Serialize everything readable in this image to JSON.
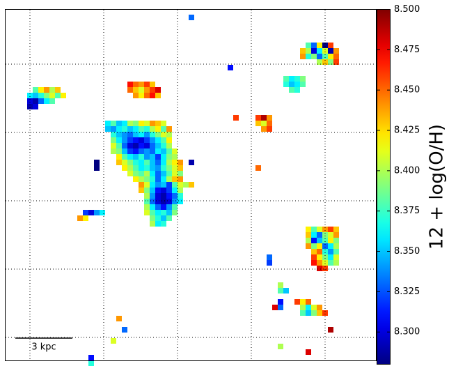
{
  "chart_data": {
    "type": "heatmap",
    "colormap": "jet",
    "colorbar_label": "12 + log(O/H)",
    "scale_bar": "3 kpc",
    "clim": [
      8.28,
      8.5
    ],
    "cticks": [
      {
        "value": 8.3,
        "label": "8.300"
      },
      {
        "value": 8.325,
        "label": "8.325"
      },
      {
        "value": 8.35,
        "label": "8.350"
      },
      {
        "value": 8.375,
        "label": "8.375"
      },
      {
        "value": 8.4,
        "label": "8.400"
      },
      {
        "value": 8.425,
        "label": "8.425"
      },
      {
        "value": 8.45,
        "label": "8.450"
      },
      {
        "value": 8.475,
        "label": "8.475"
      },
      {
        "value": 8.5,
        "label": "8.500"
      }
    ],
    "cells": [
      {
        "row": 20,
        "col": 18,
        "values": [
          8.36,
          8.38,
          8.35,
          8.36,
          8.4,
          8.39,
          8.42,
          8.41,
          8.44,
          8.43,
          8.41
        ]
      },
      {
        "row": 21,
        "col": 18,
        "values": [
          8.35,
          8.34,
          8.36,
          8.37,
          8.35,
          8.36,
          8.38,
          8.37,
          8.4,
          8.42,
          8.38,
          8.44
        ]
      },
      {
        "row": 22,
        "col": 19,
        "values": [
          8.37,
          8.35,
          8.34,
          8.33,
          8.35,
          8.36,
          8.34,
          8.37,
          8.39,
          8.41,
          8.4
        ]
      },
      {
        "row": 23,
        "col": 19,
        "values": [
          8.39,
          8.36,
          8.34,
          8.32,
          8.31,
          8.3,
          8.32,
          8.34,
          8.36,
          8.38,
          8.42
        ]
      },
      {
        "row": 24,
        "col": 19,
        "values": [
          8.41,
          8.38,
          8.33,
          8.3,
          8.29,
          8.31,
          8.3,
          8.33,
          8.35,
          8.37,
          8.4
        ]
      },
      {
        "row": 25,
        "col": 19,
        "values": [
          8.4,
          8.39,
          8.35,
          8.32,
          8.31,
          8.33,
          8.34,
          8.33,
          8.36,
          8.35,
          8.38,
          8.41
        ]
      },
      {
        "row": 26,
        "col": 20,
        "values": [
          8.42,
          8.38,
          8.36,
          8.35,
          8.37,
          8.34,
          8.35,
          8.32,
          8.36,
          8.39,
          8.4
        ]
      },
      {
        "row": 27,
        "col": 20,
        "values": [
          8.43,
          8.41,
          8.39,
          8.37,
          8.36,
          8.38,
          8.35,
          8.33,
          8.36,
          8.4,
          8.42,
          8.44
        ]
      },
      {
        "row": 28,
        "col": 21,
        "values": [
          8.42,
          8.4,
          8.38,
          8.36,
          8.37,
          8.35,
          8.34,
          8.37,
          8.39,
          8.41,
          8.43
        ]
      },
      {
        "row": 29,
        "col": 22,
        "values": [
          8.41,
          8.39,
          8.38,
          8.4,
          8.36,
          8.33,
          8.35,
          8.38,
          8.41,
          8.39
        ]
      },
      {
        "row": 30,
        "col": 23,
        "values": [
          8.42,
          8.4,
          8.39,
          8.37,
          8.33,
          8.36,
          8.4,
          8.43,
          8.44
        ]
      },
      {
        "row": 31,
        "col": 24,
        "values": [
          8.44,
          8.41,
          8.36,
          8.34,
          8.35,
          8.32,
          8.38,
          8.41,
          8.4
        ]
      },
      {
        "row": 32,
        "col": 24,
        "values": [
          8.43,
          8.39,
          8.35,
          8.31,
          8.3,
          8.32,
          8.36,
          8.4
        ]
      },
      {
        "row": 33,
        "col": 25,
        "values": [
          8.4,
          8.34,
          8.3,
          8.29,
          8.31,
          8.33,
          8.37
        ]
      },
      {
        "row": 34,
        "col": 25,
        "values": [
          8.38,
          8.33,
          8.3,
          8.29,
          8.3,
          8.34,
          8.36
        ]
      },
      {
        "row": 35,
        "col": 25,
        "values": [
          8.4,
          8.36,
          8.33,
          8.31,
          8.34,
          8.38
        ]
      },
      {
        "row": 36,
        "col": 25,
        "values": [
          8.41,
          8.38,
          8.36,
          8.37,
          8.35,
          8.39
        ]
      },
      {
        "row": 37,
        "col": 26,
        "values": [
          8.39,
          8.37,
          8.35,
          8.38
        ]
      },
      {
        "row": 38,
        "col": 26,
        "values": [
          8.4,
          8.36,
          8.37
        ]
      },
      {
        "row": 14,
        "col": 5,
        "values": [
          8.38,
          8.42,
          8.44,
          8.4,
          8.43
        ]
      },
      {
        "row": 15,
        "col": 4,
        "values": [
          8.36,
          8.35,
          8.37,
          8.39,
          8.41,
          8.38,
          8.42
        ]
      },
      {
        "row": 16,
        "col": 4,
        "values": [
          8.3,
          8.29,
          8.33,
          8.36,
          8.38
        ]
      },
      {
        "row": 17,
        "col": 4,
        "values": [
          8.29,
          8.3
        ]
      },
      {
        "row": 13,
        "col": 22,
        "values": [
          8.47,
          8.45,
          8.44,
          8.46,
          8.43
        ]
      },
      {
        "row": 14,
        "col": 22,
        "values": [
          8.45,
          8.43,
          8.41,
          8.44,
          8.46,
          8.48
        ]
      },
      {
        "row": 15,
        "col": 23,
        "values": [
          8.44,
          8.42,
          8.45,
          8.47,
          8.43
        ]
      },
      {
        "row": 6,
        "col": 54,
        "values": [
          8.38,
          8.33,
          8.42,
          8.28,
          8.46
        ]
      },
      {
        "row": 7,
        "col": 53,
        "values": [
          8.43,
          8.4,
          8.3,
          8.36,
          8.41,
          8.29,
          8.44
        ]
      },
      {
        "row": 8,
        "col": 53,
        "values": [
          8.44,
          8.37,
          8.39,
          8.33,
          8.38,
          8.42,
          8.45
        ]
      },
      {
        "row": 9,
        "col": 56,
        "values": [
          8.4,
          8.43,
          8.39,
          8.46
        ]
      },
      {
        "row": 12,
        "col": 50,
        "values": [
          8.38,
          8.36,
          8.37,
          8.39
        ]
      },
      {
        "row": 13,
        "col": 50,
        "values": [
          8.37,
          8.35,
          8.36,
          8.38
        ]
      },
      {
        "row": 14,
        "col": 51,
        "values": [
          8.38,
          8.37
        ]
      },
      {
        "row": 19,
        "col": 45,
        "values": [
          8.46,
          8.49,
          8.44
        ]
      },
      {
        "row": 20,
        "col": 45,
        "values": [
          8.43,
          8.41,
          8.45
        ]
      },
      {
        "row": 21,
        "col": 46,
        "values": [
          8.44,
          8.46
        ]
      },
      {
        "row": 39,
        "col": 54,
        "values": [
          8.42,
          8.38,
          8.41,
          8.44,
          8.46,
          8.43
        ]
      },
      {
        "row": 40,
        "col": 54,
        "values": [
          8.43,
          8.36,
          8.33,
          8.39,
          8.41,
          8.44
        ]
      },
      {
        "row": 41,
        "col": 54,
        "values": [
          8.4,
          8.31,
          8.35,
          8.38,
          8.42,
          8.39
        ]
      },
      {
        "row": 42,
        "col": 54,
        "values": [
          8.44,
          8.39,
          8.42,
          8.33,
          8.36,
          8.4
        ]
      },
      {
        "row": 43,
        "col": 55,
        "values": [
          8.43,
          8.45,
          8.37,
          8.34,
          8.38
        ]
      },
      {
        "row": 44,
        "col": 55,
        "values": [
          8.46,
          8.42,
          8.39,
          8.36,
          8.41
        ]
      },
      {
        "row": 45,
        "col": 55,
        "values": [
          8.47,
          8.44,
          8.41,
          8.38,
          8.4
        ]
      },
      {
        "row": 46,
        "col": 56,
        "values": [
          8.48,
          8.46
        ]
      },
      {
        "row": 52,
        "col": 52,
        "values": [
          8.46,
          8.42,
          8.45
        ]
      },
      {
        "row": 53,
        "col": 53,
        "values": [
          8.4,
          8.36,
          8.41,
          8.44
        ]
      },
      {
        "row": 54,
        "col": 53,
        "values": [
          8.38,
          8.35,
          8.39,
          8.43,
          8.46
        ]
      },
      {
        "row": 57,
        "col": 58,
        "values": [
          8.49
        ]
      },
      {
        "row": 49,
        "col": 49,
        "values": [
          8.4
        ]
      },
      {
        "row": 50,
        "col": 49,
        "values": [
          8.38,
          8.35
        ]
      },
      {
        "row": 52,
        "col": 49,
        "values": [
          8.31
        ]
      },
      {
        "row": 53,
        "col": 48,
        "values": [
          8.48,
          8.33
        ]
      },
      {
        "row": 44,
        "col": 47,
        "values": [
          8.33
        ]
      },
      {
        "row": 45,
        "col": 47,
        "values": [
          8.32
        ]
      },
      {
        "row": 36,
        "col": 14,
        "values": [
          8.32,
          8.3,
          8.34,
          8.36
        ]
      },
      {
        "row": 37,
        "col": 13,
        "values": [
          8.44,
          8.42
        ]
      },
      {
        "row": 1,
        "col": 33,
        "values": [
          8.33
        ]
      },
      {
        "row": 10,
        "col": 40,
        "values": [
          8.31
        ]
      },
      {
        "row": 19,
        "col": 41,
        "values": [
          8.46
        ]
      },
      {
        "row": 27,
        "col": 16,
        "values": [
          8.28
        ]
      },
      {
        "row": 28,
        "col": 16,
        "values": [
          8.28
        ]
      },
      {
        "row": 27,
        "col": 33,
        "values": [
          8.29
        ]
      },
      {
        "row": 28,
        "col": 45,
        "values": [
          8.45
        ]
      },
      {
        "row": 31,
        "col": 33,
        "values": [
          8.43
        ]
      },
      {
        "row": 55,
        "col": 20,
        "values": [
          8.44
        ]
      },
      {
        "row": 57,
        "col": 21,
        "values": [
          8.33
        ]
      },
      {
        "row": 59,
        "col": 19,
        "values": [
          8.41
        ]
      },
      {
        "row": 62,
        "col": 15,
        "values": [
          8.31
        ]
      },
      {
        "row": 63,
        "col": 15,
        "values": [
          8.37
        ]
      },
      {
        "row": 61,
        "col": 54,
        "values": [
          8.48
        ]
      },
      {
        "row": 60,
        "col": 49,
        "values": [
          8.4
        ]
      }
    ]
  }
}
